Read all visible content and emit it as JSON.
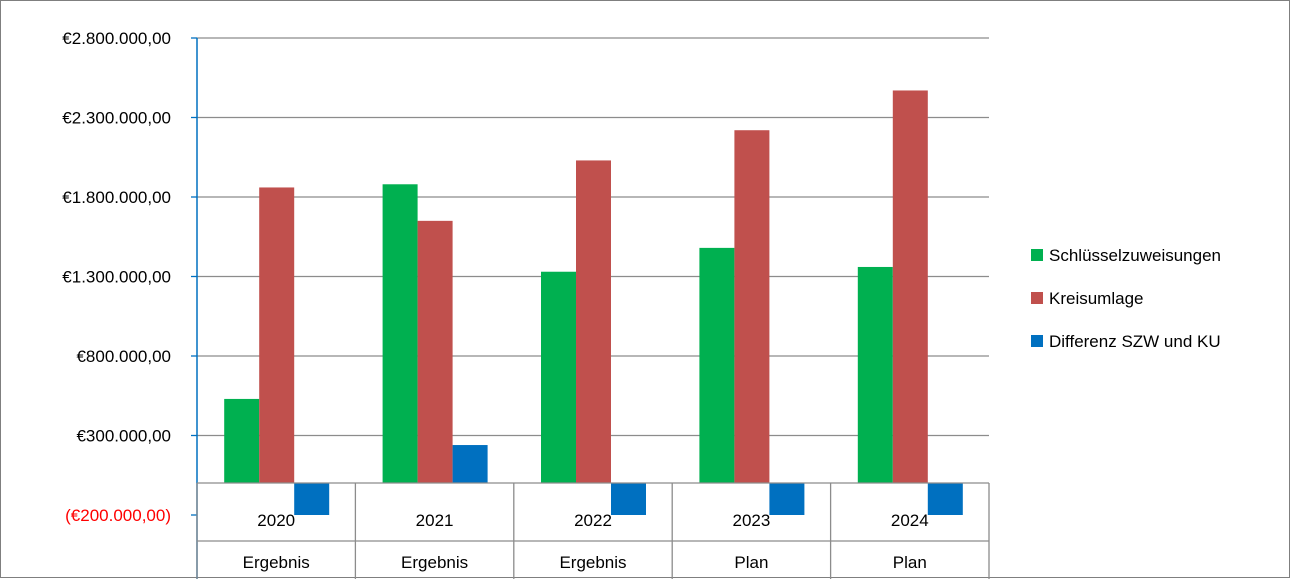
{
  "chart_data": {
    "type": "bar",
    "categories": [
      {
        "year": "2020",
        "group": "Ergebnis"
      },
      {
        "year": "2021",
        "group": "Ergebnis"
      },
      {
        "year": "2022",
        "group": "Ergebnis"
      },
      {
        "year": "2023",
        "group": "Plan"
      },
      {
        "year": "2024",
        "group": "Plan"
      }
    ],
    "series": [
      {
        "name": "Schlüsselzuweisungen",
        "color": "#00b050",
        "values": [
          530000,
          1880000,
          1330000,
          1480000,
          1360000
        ]
      },
      {
        "name": "Kreisumlage",
        "color": "#c0504d",
        "values": [
          1860000,
          1650000,
          2030000,
          2220000,
          2470000
        ]
      },
      {
        "name": "Differenz SZW und KU",
        "color": "#0070c0",
        "values": [
          -200000,
          240000,
          -200000,
          -200000,
          -200000
        ]
      }
    ],
    "y_ticks": [
      {
        "value": 2800000,
        "label": "€2.800.000,00",
        "color": "#000000"
      },
      {
        "value": 2300000,
        "label": "€2.300.000,00",
        "color": "#000000"
      },
      {
        "value": 1800000,
        "label": "€1.800.000,00",
        "color": "#000000"
      },
      {
        "value": 1300000,
        "label": "€1.300.000,00",
        "color": "#000000"
      },
      {
        "value": 800000,
        "label": "€800.000,00",
        "color": "#000000"
      },
      {
        "value": 300000,
        "label": "€300.000,00",
        "color": "#000000"
      },
      {
        "value": -200000,
        "label": "(€200.000,00)",
        "color": "#ff0000"
      }
    ],
    "ylim": [
      -200000,
      2800000
    ],
    "grid": true,
    "legend_position": "right",
    "title": "",
    "xlabel": "",
    "ylabel": ""
  }
}
